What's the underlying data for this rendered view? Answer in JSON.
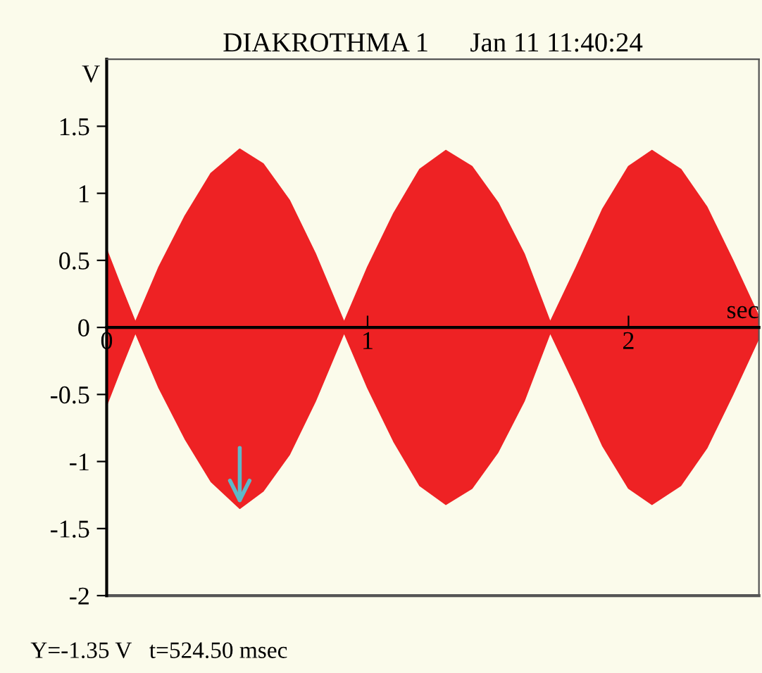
{
  "chart_data": {
    "type": "area",
    "title": "DIAKROTHMA 1      Jan 11 11:40:24",
    "xlabel": "sec",
    "ylabel": "V",
    "x": [
      0,
      0.05,
      0.11,
      0.2,
      0.3,
      0.4,
      0.51,
      0.6,
      0.7,
      0.8,
      0.91,
      1.0,
      1.1,
      1.2,
      1.3,
      1.4,
      1.5,
      1.6,
      1.7,
      1.8,
      1.9,
      2.0,
      2.09,
      2.2,
      2.3,
      2.4,
      2.5
    ],
    "series": [
      {
        "color": "#ee2224",
        "values": [
          0.58,
          0.33,
          0.04,
          0.45,
          0.83,
          1.15,
          1.33,
          1.22,
          0.95,
          0.55,
          0.04,
          0.45,
          0.85,
          1.18,
          1.32,
          1.2,
          0.93,
          0.55,
          0.04,
          0.45,
          0.88,
          1.2,
          1.32,
          1.18,
          0.9,
          0.5,
          0.08
        ]
      },
      {
        "color": "#ee2224",
        "values": [
          -0.58,
          -0.33,
          -0.04,
          -0.45,
          -0.83,
          -1.15,
          -1.35,
          -1.22,
          -0.95,
          -0.55,
          -0.04,
          -0.45,
          -0.85,
          -1.18,
          -1.32,
          -1.2,
          -0.93,
          -0.55,
          -0.04,
          -0.45,
          -0.88,
          -1.2,
          -1.32,
          -1.18,
          -0.9,
          -0.5,
          -0.08
        ]
      }
    ],
    "xlim": [
      0,
      2.5
    ],
    "ylim": [
      -2,
      2
    ],
    "xticks": [
      0,
      1,
      2
    ],
    "yticks": [
      -2,
      -1.5,
      -1,
      -0.5,
      0,
      0.5,
      1,
      1.5
    ],
    "grid": false,
    "legend": false,
    "annotations": [
      "Y=-1.35 V   t=524.50 msec"
    ]
  }
}
